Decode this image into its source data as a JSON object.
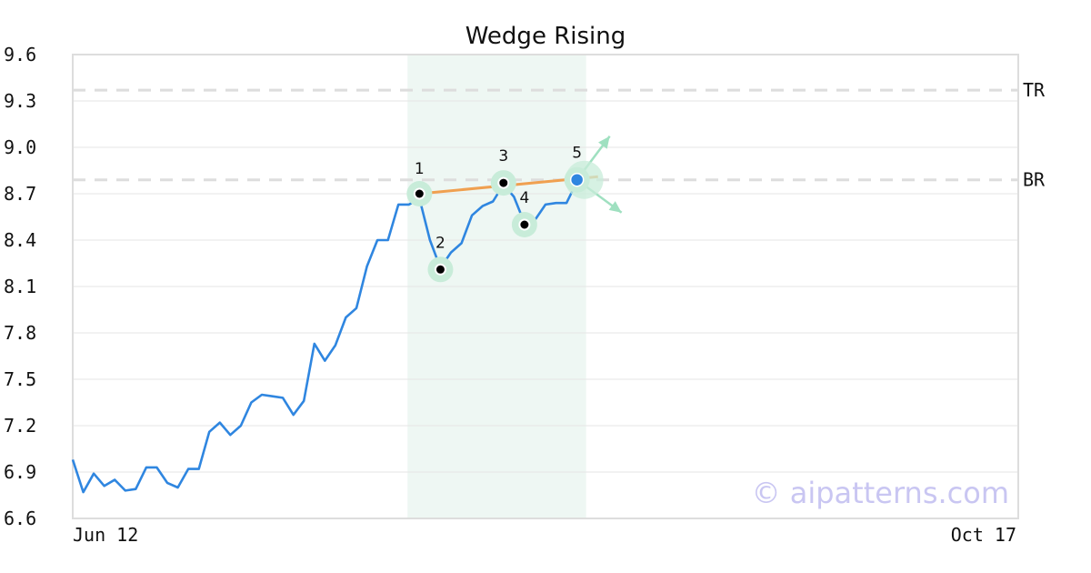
{
  "chart_data": {
    "type": "line",
    "title": "Wedge Rising",
    "xlabel": "",
    "ylabel": "",
    "ylim": [
      6.6,
      9.6
    ],
    "y_ticks": [
      "9.6",
      "9.3",
      "9.0",
      "8.7",
      "8.4",
      "8.1",
      "7.8",
      "7.5",
      "7.2",
      "6.9",
      "6.6"
    ],
    "x_tick_labels": [
      "Jun 12",
      "Oct 17"
    ],
    "x_range_index": [
      0,
      90
    ],
    "grid": true,
    "series": [
      {
        "values": [
          6.98,
          6.77,
          6.89,
          6.81,
          6.85,
          6.78,
          6.79,
          6.93,
          6.93,
          6.83,
          6.8,
          6.92,
          6.92,
          7.16,
          7.22,
          7.14,
          7.2,
          7.35,
          7.4,
          7.39,
          7.38,
          7.27,
          7.36,
          7.73,
          7.62,
          7.72,
          7.9,
          7.96,
          8.23,
          8.4,
          8.4,
          8.63,
          8.63,
          8.67,
          8.4,
          8.22,
          8.32,
          8.38,
          8.56,
          8.62,
          8.65,
          8.76,
          8.68,
          8.51,
          8.53,
          8.63,
          8.64,
          8.64,
          8.78
        ],
        "color": "#2f86e0"
      }
    ],
    "pattern": {
      "name": "Wedge Rising",
      "zone_index_range": [
        31,
        48
      ],
      "points": [
        {
          "label": "1",
          "index": 33,
          "value": 8.7
        },
        {
          "label": "2",
          "index": 35,
          "value": 8.21
        },
        {
          "label": "3",
          "index": 41,
          "value": 8.77
        },
        {
          "label": "4",
          "index": 43,
          "value": 8.5
        },
        {
          "label": "5",
          "index": 48,
          "value": 8.79
        }
      ],
      "trend_line": {
        "from_index": 33,
        "from_value": 8.7,
        "to_index": 50,
        "to_value": 8.81,
        "color": "#f0a050"
      }
    },
    "reference_lines": [
      {
        "label": "TR",
        "value": 9.37
      },
      {
        "label": "BR",
        "value": 8.79
      }
    ],
    "colors": {
      "line": "#2f86e0",
      "zone": "#eef7f3",
      "marker_halo": "#c8ecd9",
      "arrow": "#9fe0c0",
      "trend": "#f0a050",
      "watermark": "#c9c6f2"
    }
  },
  "watermark": "© aipatterns.com"
}
